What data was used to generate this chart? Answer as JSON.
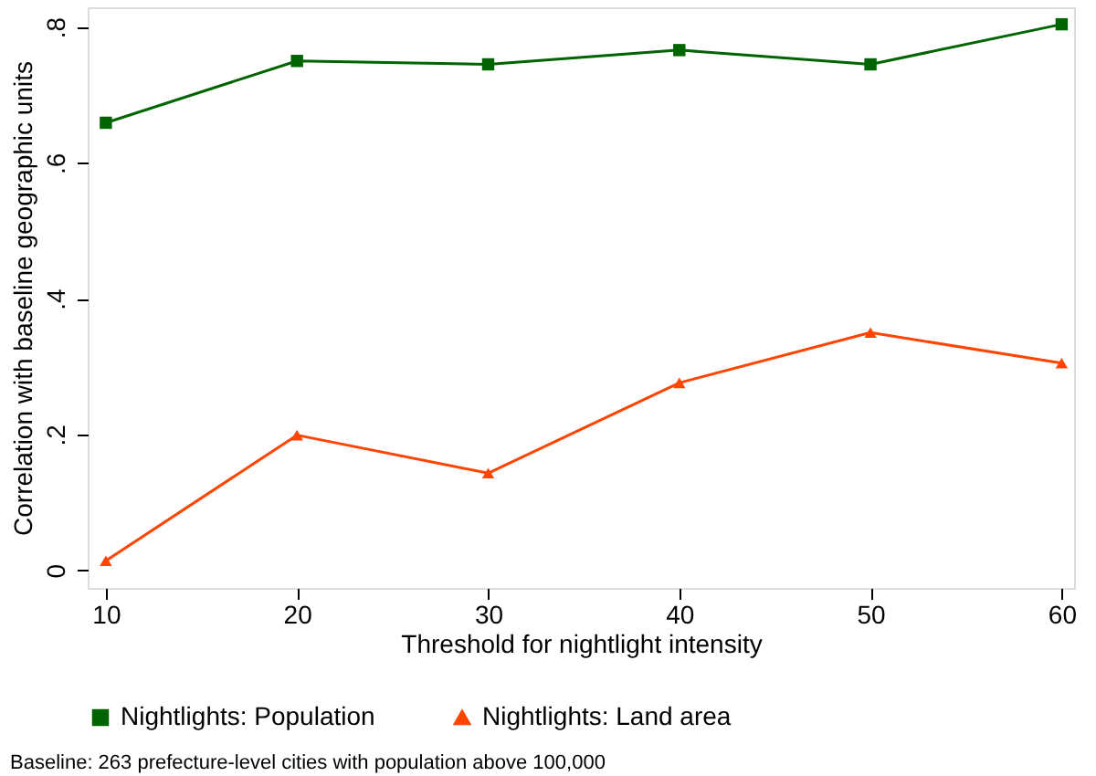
{
  "chart_data": {
    "type": "line",
    "xlabel": "Threshold for nightlight intensity",
    "ylabel": "Correlation with baseline geographic units",
    "x": [
      10,
      20,
      30,
      40,
      50,
      60
    ],
    "series": [
      {
        "name": "Nightlights: Population",
        "color": "#006400",
        "marker": "square",
        "values": [
          0.659,
          0.75,
          0.745,
          0.766,
          0.745,
          0.804
        ]
      },
      {
        "name": "Nightlights: Land area",
        "color": "#ff4500",
        "marker": "triangle",
        "values": [
          0.014,
          0.199,
          0.143,
          0.276,
          0.35,
          0.305
        ]
      }
    ],
    "xlim": [
      9.05,
      60.65
    ],
    "xticks": [
      10,
      20,
      30,
      40,
      50,
      60
    ],
    "ylim": [
      -0.026,
      0.829
    ],
    "yticks": [
      {
        "value": 0,
        "label": "0"
      },
      {
        "value": 0.2,
        "label": ".2"
      },
      {
        "value": 0.4,
        "label": ".4"
      },
      {
        "value": 0.6,
        "label": ".6"
      },
      {
        "value": 0.8,
        "label": ".8"
      }
    ],
    "grid": false,
    "legend": "bottom",
    "line_style": "solid",
    "annotations": [
      "Baseline: 263 prefecture-level cities with population above 100,000"
    ]
  }
}
